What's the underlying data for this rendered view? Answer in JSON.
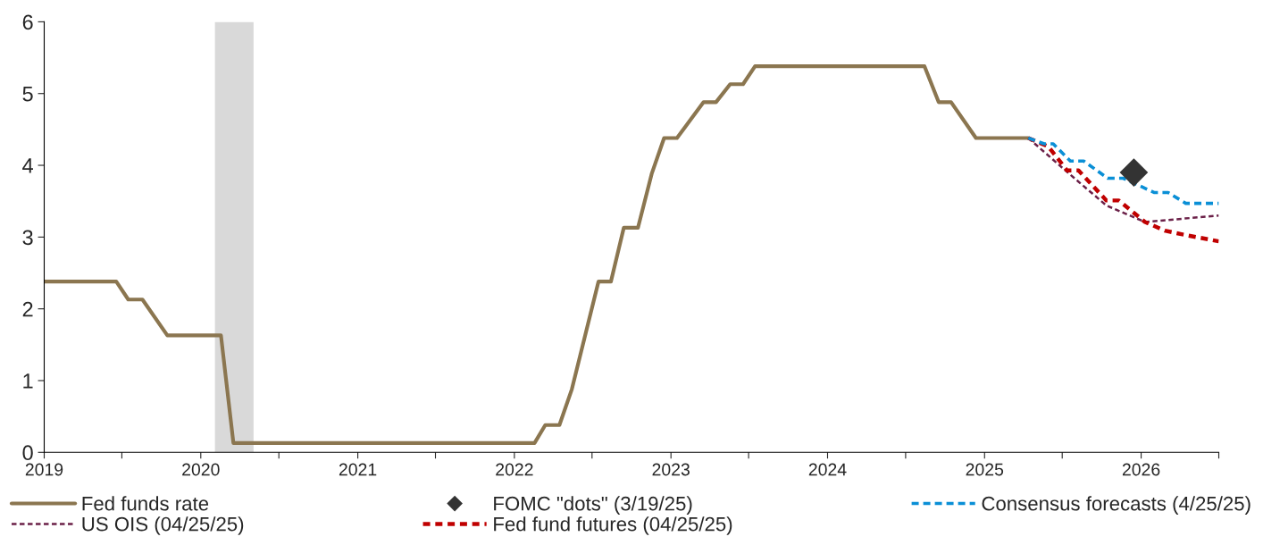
{
  "chart_data": {
    "type": "line",
    "xlim": [
      "2019-01-01",
      "2026-07-01"
    ],
    "xticks": [
      {
        "value": "2019-01-01",
        "label": "2019"
      },
      {
        "value": "2019-07-01",
        "label": null
      },
      {
        "value": "2020-01-01",
        "label": "2020"
      },
      {
        "value": "2020-07-01",
        "label": null
      },
      {
        "value": "2021-01-01",
        "label": "2021"
      },
      {
        "value": "2021-07-01",
        "label": null
      },
      {
        "value": "2022-01-01",
        "label": "2022"
      },
      {
        "value": "2022-07-01",
        "label": null
      },
      {
        "value": "2023-01-01",
        "label": "2023"
      },
      {
        "value": "2023-07-01",
        "label": null
      },
      {
        "value": "2024-01-01",
        "label": "2024"
      },
      {
        "value": "2024-07-01",
        "label": null
      },
      {
        "value": "2025-01-01",
        "label": "2025"
      },
      {
        "value": "2025-07-01",
        "label": null
      },
      {
        "value": "2026-01-01",
        "label": "2026"
      },
      {
        "value": "2026-07-01",
        "label": null
      }
    ],
    "ylim": [
      0,
      6
    ],
    "yticks": [
      0,
      1,
      2,
      3,
      4,
      5,
      6
    ],
    "grid": false,
    "legend": "bottom",
    "bands": [
      {
        "axis": "x",
        "from": "2020-02-03",
        "to": "2020-05-03",
        "color": "#d9d9d9"
      }
    ],
    "series": [
      {
        "name": "Fed funds rate",
        "color": "#8b7650",
        "line_style": "solid",
        "x": [
          "2019-01-01",
          "2019-06-18",
          "2019-07-16",
          "2019-08-18",
          "2019-10-15",
          "2020-02-17",
          "2020-03-17",
          "2022-02-17",
          "2022-03-14",
          "2022-04-16",
          "2022-05-15",
          "2022-07-16",
          "2022-08-14",
          "2022-09-13",
          "2022-10-16",
          "2022-11-17",
          "2022-12-16",
          "2023-01-15",
          "2023-03-18",
          "2023-04-16",
          "2023-05-19",
          "2023-06-18",
          "2023-07-16",
          "2024-08-14",
          "2024-09-16",
          "2024-10-15",
          "2024-12-12",
          "2025-04-13"
        ],
        "values": [
          2.38,
          2.38,
          2.13,
          2.13,
          1.63,
          1.63,
          0.13,
          0.13,
          0.38,
          0.38,
          0.88,
          2.38,
          2.38,
          3.13,
          3.13,
          3.88,
          4.38,
          4.38,
          4.88,
          4.88,
          5.13,
          5.13,
          5.38,
          5.38,
          4.88,
          4.88,
          4.38,
          4.38
        ]
      },
      {
        "name": "FOMC \"dots\" (3/19/25)",
        "type": "scatter",
        "color": "#333333",
        "marker": "diamond",
        "x": [
          "2025-12-15"
        ],
        "values": [
          3.9
        ]
      },
      {
        "name": "Consensus forecasts (4/25/25)",
        "color": "#0a8fd6",
        "line_style": "dashed",
        "x": [
          "2025-04-13",
          "2025-05-20",
          "2025-06-10",
          "2025-07-20",
          "2025-08-20",
          "2025-10-15",
          "2025-11-20",
          "2026-02-01",
          "2026-03-05",
          "2026-04-15",
          "2026-07-01"
        ],
        "values": [
          4.38,
          4.3,
          4.3,
          4.06,
          4.06,
          3.82,
          3.82,
          3.62,
          3.62,
          3.47,
          3.47
        ]
      },
      {
        "name": "US OIS (04/25/25)",
        "color": "#6b2048",
        "line_style": "dashed",
        "x": [
          "2025-04-13",
          "2025-07-08",
          "2025-10-12",
          "2026-01-10",
          "2026-07-01"
        ],
        "values": [
          4.38,
          3.93,
          3.44,
          3.21,
          3.3
        ]
      },
      {
        "name": "Fed fund futures (04/25/25)",
        "color": "#c00000",
        "line_style": "dotted",
        "x": [
          "2025-04-13",
          "2025-05-30",
          "2025-07-12",
          "2025-08-08",
          "2025-10-12",
          "2025-11-10",
          "2026-01-10",
          "2026-02-25",
          "2026-04-05",
          "2026-07-01"
        ],
        "values": [
          4.38,
          4.26,
          3.93,
          3.93,
          3.51,
          3.51,
          3.21,
          3.09,
          3.04,
          2.94
        ]
      }
    ]
  }
}
